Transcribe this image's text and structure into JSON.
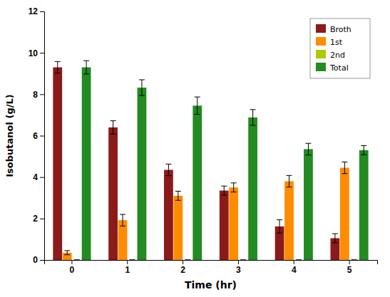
{
  "chart_data": {
    "type": "bar",
    "categories": [
      "0",
      "1",
      "2",
      "3",
      "4",
      "5"
    ],
    "series": [
      {
        "name": "Broth",
        "color": "#8B1A1A",
        "values": [
          9.3,
          6.4,
          4.35,
          3.35,
          1.62,
          1.05
        ],
        "errors": [
          0.28,
          0.32,
          0.28,
          0.22,
          0.32,
          0.22
        ]
      },
      {
        "name": "1st",
        "color": "#FF8C00",
        "values": [
          0.35,
          1.92,
          3.1,
          3.5,
          3.8,
          4.45
        ],
        "errors": [
          0.1,
          0.28,
          0.22,
          0.22,
          0.28,
          0.28
        ]
      },
      {
        "name": "2nd",
        "color": "#AACC00",
        "values": [
          0.0,
          0.0,
          0.0,
          0.0,
          0.0,
          0.0
        ],
        "errors": [
          0.0,
          0.0,
          0.0,
          0.0,
          0.0,
          0.0
        ]
      },
      {
        "name": "Total",
        "color": "#228B22",
        "values": [
          9.3,
          8.32,
          7.45,
          6.88,
          5.35,
          5.3
        ],
        "errors": [
          0.32,
          0.38,
          0.42,
          0.38,
          0.28,
          0.22
        ]
      }
    ],
    "xlabel": "Time (hr)",
    "ylabel": "Isobutanol (g/L)",
    "ylim": [
      0,
      12
    ],
    "yticks": [
      0,
      2,
      4,
      6,
      8,
      10,
      12
    ],
    "grid": false,
    "legend": "upper right"
  }
}
